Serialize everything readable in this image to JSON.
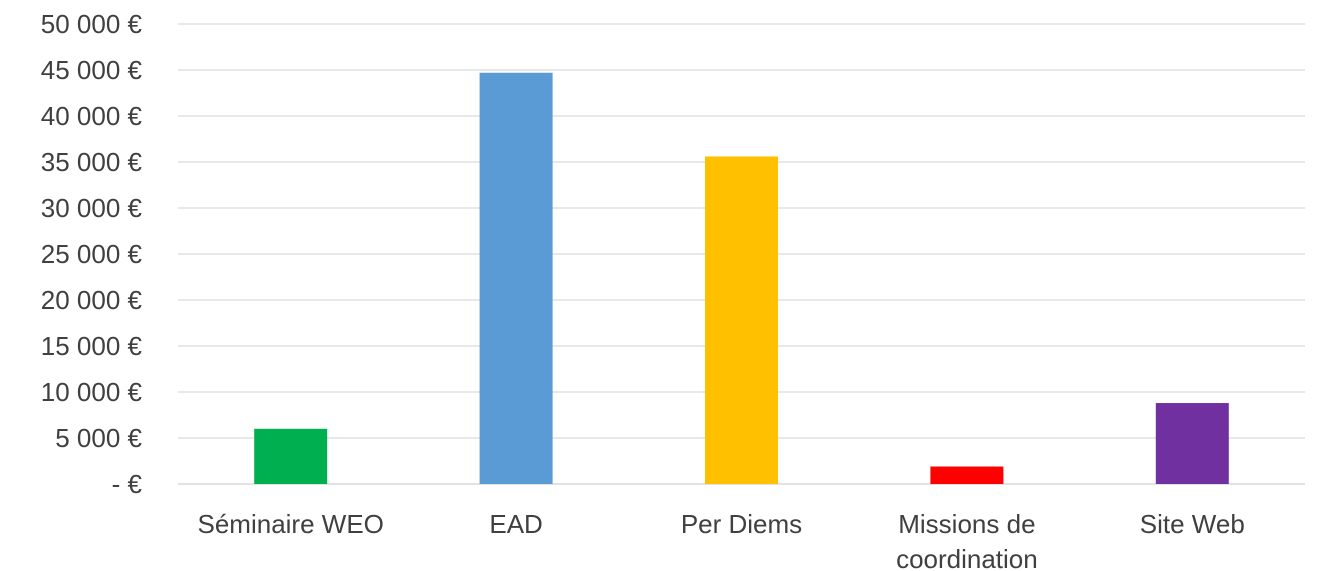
{
  "chart_data": {
    "type": "bar",
    "title": "",
    "xlabel": "",
    "ylabel": "",
    "categories": [
      [
        "Séminaire WEO"
      ],
      [
        "EAD"
      ],
      [
        "Per Diems"
      ],
      [
        "Missions de",
        "coordination"
      ],
      [
        "Site Web"
      ]
    ],
    "values": [
      6000,
      44700,
      35600,
      1900,
      8800
    ],
    "colors": [
      "#00B050",
      "#5B9BD5",
      "#FFC000",
      "#FF0000",
      "#7030A0"
    ],
    "ylim": [
      0,
      50000
    ],
    "yticks": [
      0,
      5000,
      10000,
      15000,
      20000,
      25000,
      30000,
      35000,
      40000,
      45000,
      50000
    ],
    "ytick_labels": [
      "-   €",
      "5 000 €",
      "10 000 €",
      "15 000 €",
      "20 000 €",
      "25 000 €",
      "30 000 €",
      "35 000 €",
      "40 000 €",
      "45 000 €",
      "50 000 €"
    ],
    "grid": true,
    "gridline_color": "#d9d9d9",
    "legend": "none"
  }
}
